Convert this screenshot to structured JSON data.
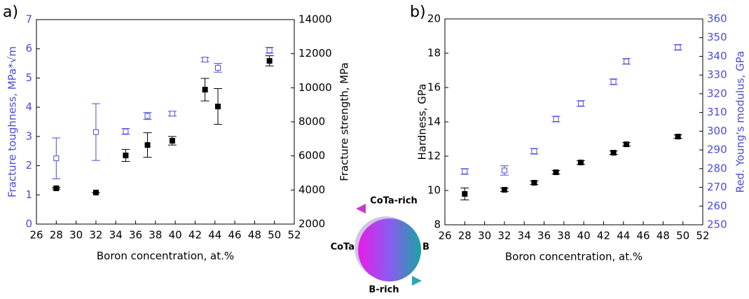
{
  "chart_data": [
    {
      "type": "scatter",
      "label": "a)",
      "xlabel": "Boron concentration, at.%",
      "ylabel": "Fracture toughness, MPa*√m",
      "y2label": "Fracture strength, MPa",
      "y_color": "#4b4bdc",
      "y2_color": "#000000",
      "xlim": [
        26,
        52
      ],
      "xticks": [
        26,
        28,
        30,
        32,
        34,
        36,
        38,
        40,
        42,
        44,
        46,
        48,
        50,
        52
      ],
      "ylim": [
        0,
        7
      ],
      "yticks": [
        0,
        1,
        2,
        3,
        4,
        5,
        6,
        7
      ],
      "y2lim": [
        2000,
        14000
      ],
      "y2ticks": [
        2000,
        4000,
        6000,
        8000,
        10000,
        12000,
        14000
      ],
      "series": [
        {
          "color": "#4b4bdc",
          "marker": "open-square",
          "x": [
            28,
            32,
            35,
            37.2,
            39.7,
            43,
            44.3,
            49.5
          ],
          "values": [
            2.25,
            3.15,
            3.17,
            3.7,
            3.78,
            5.63,
            5.35,
            5.95
          ],
          "errors": [
            0.7,
            0.97,
            0.1,
            0.12,
            0.08,
            0.07,
            0.15,
            0.1
          ]
        },
        {
          "color": "#000000",
          "marker": "square",
          "axis": "y2",
          "x": [
            28,
            32,
            35,
            37.2,
            39.7,
            43,
            44.3,
            49.5
          ],
          "values": [
            4100,
            3850,
            6030,
            6640,
            6890,
            9890,
            8900,
            11580
          ],
          "errors": [
            50,
            0,
            350,
            720,
            250,
            660,
            1050,
            300
          ]
        }
      ]
    },
    {
      "type": "scatter",
      "label": "b)",
      "xlabel": "Boron concentration, at.%",
      "ylabel": "Hardness, GPa",
      "y2label": "Red. Young's modulus, GPa",
      "y_color": "#000000",
      "y2_color": "#4b4bdc",
      "xlim": [
        26,
        52
      ],
      "xticks": [
        26,
        28,
        30,
        32,
        34,
        36,
        38,
        40,
        42,
        44,
        46,
        48,
        50,
        52
      ],
      "ylim": [
        8,
        20
      ],
      "yticks": [
        8,
        10,
        12,
        14,
        16,
        18,
        20
      ],
      "y2lim": [
        250,
        360
      ],
      "y2ticks": [
        250,
        260,
        270,
        280,
        290,
        300,
        310,
        320,
        330,
        340,
        350,
        360
      ],
      "series": [
        {
          "color": "#000000",
          "marker": "square",
          "x": [
            28,
            32,
            35,
            37.2,
            39.7,
            43,
            44.3,
            49.5
          ],
          "values": [
            9.8,
            10.04,
            10.45,
            11.06,
            11.63,
            12.2,
            12.69,
            13.14
          ],
          "errors": [
            0.35,
            0.1,
            0.1,
            0.1,
            0.1,
            0.1,
            0.1,
            0.1
          ]
        },
        {
          "color": "#4b4bdc",
          "marker": "open-square",
          "axis": "y2",
          "x": [
            28,
            32,
            35,
            37.2,
            39.7,
            43,
            44.3,
            49.5
          ],
          "values": [
            278.5,
            279,
            289.3,
            306.5,
            314.8,
            326.4,
            337.3,
            344.8
          ],
          "errors": [
            1.5,
            2.5,
            1.5,
            1.5,
            1.5,
            1.5,
            1.5,
            1.5
          ]
        }
      ]
    }
  ],
  "diagram": {
    "top_arrow": "CoTa-rich",
    "left": "CoTa",
    "right": "B",
    "bottom_arrow": "B-rich"
  }
}
